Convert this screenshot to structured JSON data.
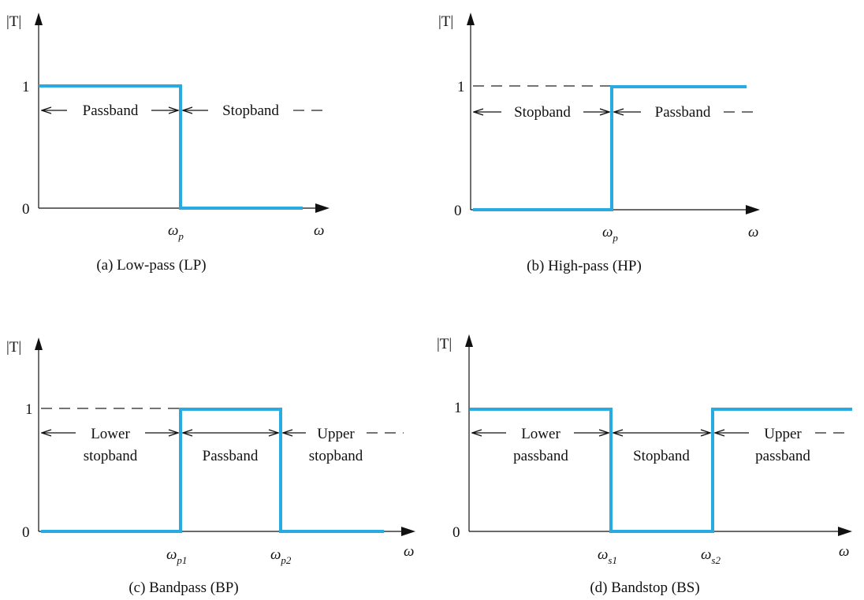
{
  "figure": {
    "response_color": "#29ABE2",
    "panels": [
      {
        "id": "a",
        "caption": "(a) Low-pass (LP)",
        "y_label": "|T|",
        "y_ticks": [
          "1",
          "0"
        ],
        "x_label": "ω",
        "freq_markers": [
          {
            "sym": "ω",
            "sub": "p"
          }
        ],
        "bands": [
          "Passband",
          "Stopband"
        ]
      },
      {
        "id": "b",
        "caption": "(b) High-pass (HP)",
        "y_label": "|T|",
        "y_ticks": [
          "1",
          "0"
        ],
        "x_label": "ω",
        "freq_markers": [
          {
            "sym": "ω",
            "sub": "p"
          }
        ],
        "bands": [
          "Stopband",
          "Passband"
        ]
      },
      {
        "id": "c",
        "caption": "(c) Bandpass (BP)",
        "y_label": "|T|",
        "y_ticks": [
          "1",
          "0"
        ],
        "x_label": "ω",
        "freq_markers": [
          {
            "sym": "ω",
            "sub": "p1"
          },
          {
            "sym": "ω",
            "sub": "p2"
          }
        ],
        "bands": [
          [
            "Lower",
            "stopband"
          ],
          [
            "Passband"
          ],
          [
            "Upper",
            "stopband"
          ]
        ]
      },
      {
        "id": "d",
        "caption": "(d) Bandstop (BS)",
        "y_label": "|T|",
        "y_ticks": [
          "1",
          "0"
        ],
        "x_label": "ω",
        "freq_markers": [
          {
            "sym": "ω",
            "sub": "s1"
          },
          {
            "sym": "ω",
            "sub": "s2"
          }
        ],
        "bands": [
          [
            "Lower",
            "passband"
          ],
          [
            "Stopband"
          ],
          [
            "Upper",
            "passband"
          ]
        ]
      }
    ]
  }
}
